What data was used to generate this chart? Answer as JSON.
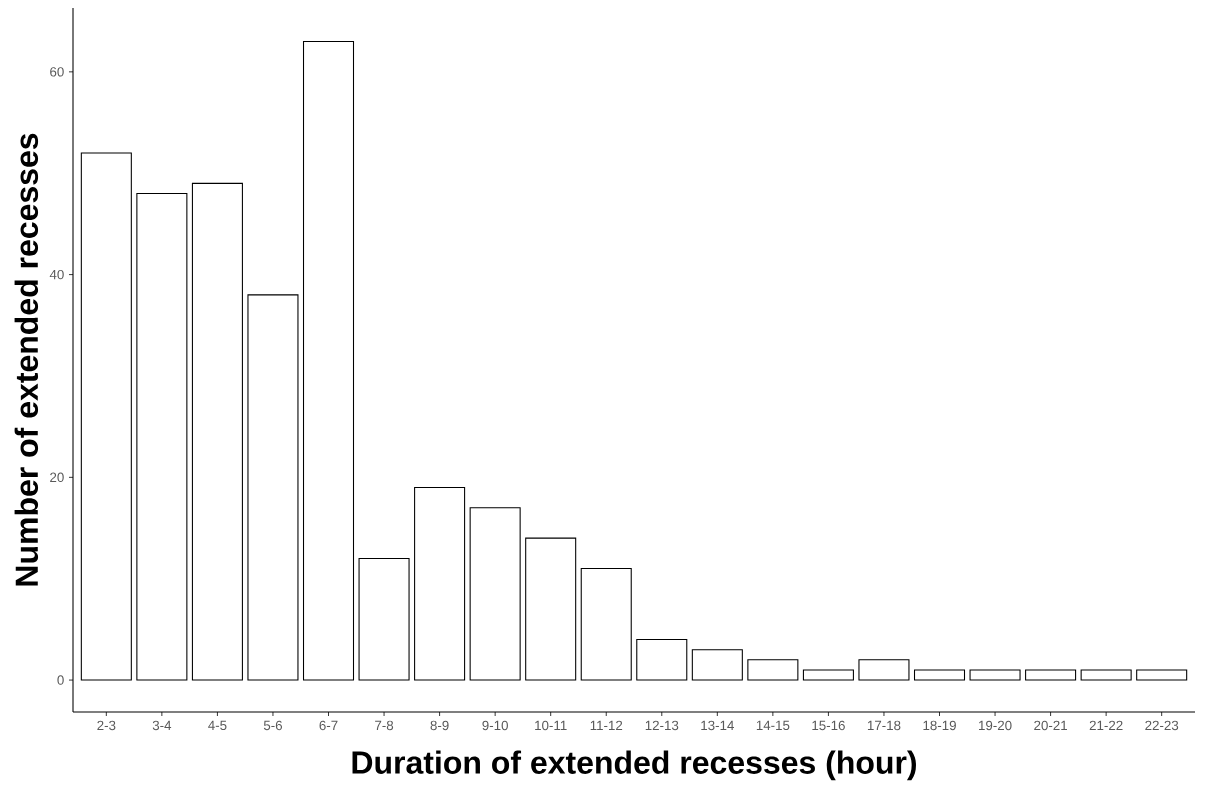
{
  "chart_data": {
    "type": "bar",
    "xlabel": "Duration of extended recesses (hour)",
    "ylabel": "Number of extended recesses",
    "categories": [
      "2-3",
      "3-4",
      "4-5",
      "5-6",
      "6-7",
      "7-8",
      "8-9",
      "9-10",
      "10-11",
      "11-12",
      "12-13",
      "13-14",
      "14-15",
      "15-16",
      "17-18",
      "18-19",
      "19-20",
      "20-21",
      "21-22",
      "22-23"
    ],
    "values": [
      52,
      48,
      49,
      38,
      63,
      12,
      19,
      17,
      14,
      11,
      4,
      3,
      2,
      1,
      2,
      1,
      1,
      1,
      1,
      1
    ],
    "color": "#ffffff",
    "ylim": [
      -3.15,
      66.3
    ],
    "yticks": [
      0,
      20,
      40,
      60
    ],
    "grid": false
  }
}
